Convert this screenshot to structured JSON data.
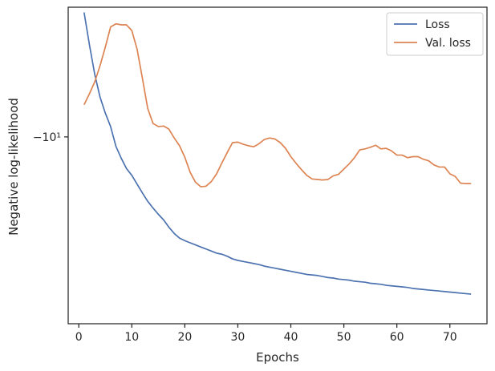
{
  "chart_data": {
    "type": "line",
    "title": "",
    "xlabel": "Epochs",
    "ylabel": "Negative log-likelihood",
    "yscale": "symlog (negative values)",
    "xlim": [
      -2,
      77
    ],
    "ylim": [
      -13.6,
      -7.5
    ],
    "x_ticks": [
      0,
      10,
      20,
      30,
      40,
      50,
      60,
      70
    ],
    "x_tick_labels": [
      "0",
      "10",
      "20",
      "30",
      "40",
      "50",
      "60",
      "70"
    ],
    "y_ticks": [
      -10
    ],
    "y_tick_labels": [
      "−10¹"
    ],
    "grid": false,
    "legend_position": "top-right",
    "series": [
      {
        "name": "Loss",
        "color": "#4c72b0",
        "x": [
          1,
          2,
          3,
          4,
          5,
          6,
          7,
          8,
          9,
          10,
          11,
          12,
          13,
          14,
          15,
          16,
          17,
          18,
          19,
          20,
          21,
          22,
          23,
          24,
          25,
          26,
          27,
          28,
          29,
          30,
          31,
          32,
          33,
          34,
          35,
          36,
          37,
          38,
          39,
          40,
          41,
          42,
          43,
          44,
          45,
          46,
          47,
          48,
          49,
          50,
          51,
          52,
          53,
          54,
          55,
          56,
          57,
          58,
          59,
          60,
          61,
          62,
          63,
          64,
          65,
          66,
          67,
          68,
          69,
          70,
          71,
          72,
          73,
          74
        ],
        "y": [
          -7.6,
          -8.22,
          -8.79,
          -9.23,
          -9.54,
          -9.8,
          -10.18,
          -10.41,
          -10.61,
          -10.74,
          -10.91,
          -11.08,
          -11.24,
          -11.37,
          -11.49,
          -11.6,
          -11.74,
          -11.86,
          -11.95,
          -12.0,
          -12.04,
          -12.08,
          -12.12,
          -12.16,
          -12.2,
          -12.24,
          -12.26,
          -12.3,
          -12.35,
          -12.38,
          -12.4,
          -12.42,
          -12.44,
          -12.46,
          -12.49,
          -12.51,
          -12.53,
          -12.55,
          -12.57,
          -12.59,
          -12.61,
          -12.63,
          -12.65,
          -12.66,
          -12.67,
          -12.69,
          -12.71,
          -12.72,
          -12.74,
          -12.75,
          -12.76,
          -12.78,
          -12.79,
          -12.8,
          -12.82,
          -12.83,
          -12.84,
          -12.86,
          -12.87,
          -12.88,
          -12.89,
          -12.9,
          -12.92,
          -12.93,
          -12.94,
          -12.95,
          -12.96,
          -12.97,
          -12.98,
          -12.99,
          -13.0,
          -13.01,
          -13.02,
          -13.03
        ]
      },
      {
        "name": "Val. loss",
        "color": "#dd8452",
        "x": [
          1,
          2,
          3,
          4,
          5,
          6,
          7,
          8,
          9,
          10,
          11,
          12,
          13,
          14,
          15,
          16,
          17,
          18,
          19,
          20,
          21,
          22,
          23,
          24,
          25,
          26,
          27,
          28,
          29,
          30,
          31,
          32,
          33,
          34,
          35,
          36,
          37,
          38,
          39,
          40,
          41,
          42,
          43,
          44,
          45,
          46,
          47,
          48,
          49,
          50,
          51,
          52,
          53,
          54,
          55,
          56,
          57,
          58,
          59,
          60,
          61,
          62,
          63,
          64,
          65,
          66,
          67,
          68,
          69,
          70,
          71,
          72,
          73,
          74
        ],
        "y": [
          -9.38,
          -9.17,
          -8.94,
          -8.63,
          -8.27,
          -7.88,
          -7.82,
          -7.84,
          -7.84,
          -7.95,
          -8.31,
          -8.87,
          -9.45,
          -9.74,
          -9.8,
          -9.79,
          -9.85,
          -10.02,
          -10.17,
          -10.39,
          -10.68,
          -10.87,
          -10.96,
          -10.95,
          -10.86,
          -10.71,
          -10.5,
          -10.3,
          -10.11,
          -10.1,
          -10.14,
          -10.17,
          -10.19,
          -10.13,
          -10.05,
          -10.02,
          -10.04,
          -10.11,
          -10.22,
          -10.38,
          -10.51,
          -10.63,
          -10.74,
          -10.81,
          -10.82,
          -10.83,
          -10.82,
          -10.75,
          -10.72,
          -10.62,
          -10.52,
          -10.4,
          -10.25,
          -10.23,
          -10.2,
          -10.16,
          -10.23,
          -10.22,
          -10.27,
          -10.35,
          -10.35,
          -10.4,
          -10.38,
          -10.38,
          -10.43,
          -10.46,
          -10.54,
          -10.58,
          -10.58,
          -10.71,
          -10.76,
          -10.89,
          -10.9,
          -10.9
        ]
      }
    ]
  }
}
